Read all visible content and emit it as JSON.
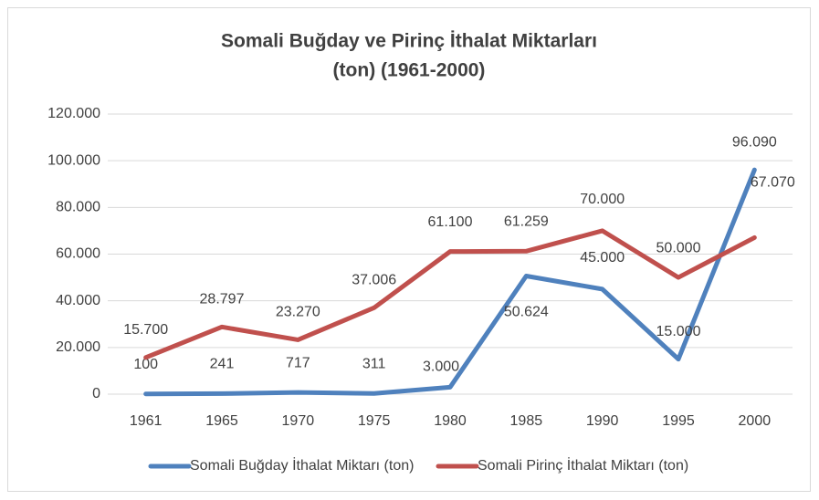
{
  "chart_data": {
    "type": "line",
    "title": [
      "Somali Buğday ve Pirinç İthalat Miktarları",
      "(ton) (1961-2000)"
    ],
    "categories": [
      "1961",
      "1965",
      "1970",
      "1975",
      "1980",
      "1985",
      "1990",
      "1995",
      "2000"
    ],
    "series": [
      {
        "name": "Somali Buğday İthalat Miktarı (ton)",
        "color": "#4f81bd",
        "values": [
          100,
          241,
          717,
          311,
          3000,
          50624,
          45000,
          15000,
          96090
        ],
        "value_labels": [
          "100",
          "241",
          "717",
          "311",
          "3.000",
          "50.624",
          "45.000",
          "15.000",
          "96.090"
        ]
      },
      {
        "name": "Somali Pirinç İthalat Miktarı (ton)",
        "color": "#c0504d",
        "values": [
          15700,
          28797,
          23270,
          37006,
          61100,
          61259,
          70000,
          50000,
          67070
        ],
        "value_labels": [
          "15.700",
          "28.797",
          "23.270",
          "37.006",
          "61.100",
          "61.259",
          "70.000",
          "50.000",
          "67.070"
        ]
      }
    ],
    "ylim": [
      0,
      120000
    ],
    "yticks": [
      0,
      {
        "value": 20000,
        "label": "20.000"
      },
      {
        "value": 40000,
        "label": "40.000"
      },
      {
        "value": 60000,
        "label": "60.000"
      },
      {
        "value": 80000,
        "label": "80.000"
      },
      {
        "value": 100000,
        "label": "100.000"
      },
      {
        "value": 120000,
        "label": "120.000"
      }
    ],
    "grid": true,
    "legend": "bottom"
  }
}
